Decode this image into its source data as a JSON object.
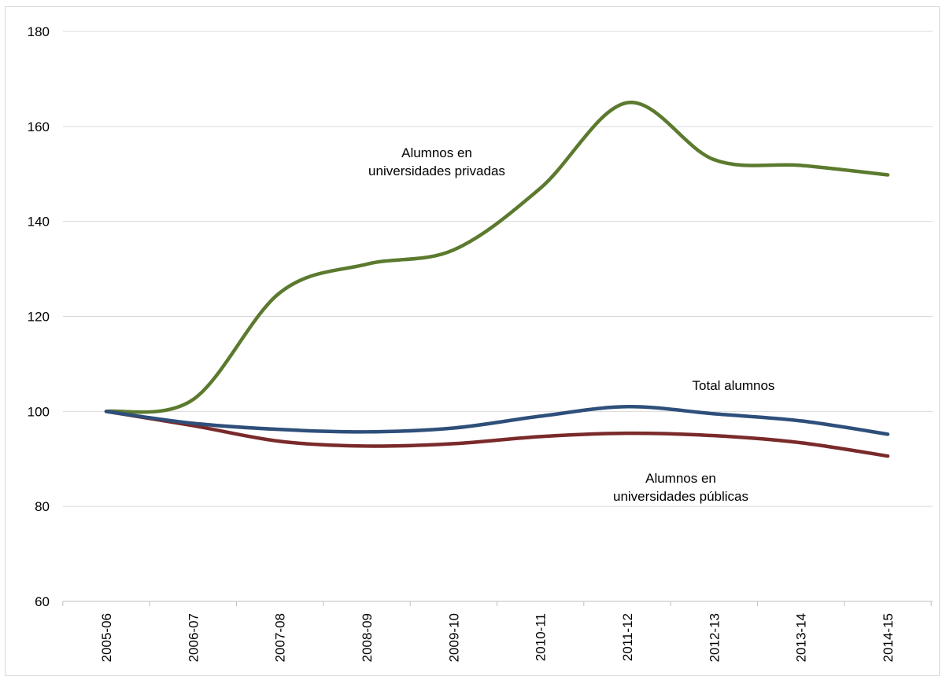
{
  "chart_data": {
    "type": "line",
    "title": "",
    "xlabel": "",
    "ylabel": "",
    "categories": [
      "2005-06",
      "2006-07",
      "2007-08",
      "2008-09",
      "2009-10",
      "2010-11",
      "2011-12",
      "2012-13",
      "2013-14",
      "2014-15"
    ],
    "ylim": [
      60,
      180
    ],
    "yticks": [
      "60",
      "80",
      "100",
      "120",
      "140",
      "160",
      "180"
    ],
    "grid": true,
    "smooth": true,
    "series": [
      {
        "name": "Alumnos en universidades privadas",
        "color": "#5b7a2e",
        "values": [
          100,
          102.5,
          125,
          131,
          134,
          147,
          165,
          153,
          151.8,
          149.8
        ]
      },
      {
        "name": "Total alumnos",
        "color": "#2e4f7a",
        "values": [
          100,
          97.5,
          96.2,
          95.7,
          96.5,
          99,
          101,
          99.5,
          98,
          95.2
        ]
      },
      {
        "name": "Alumnos en universidades públicas",
        "color": "#7a2a2a",
        "values": [
          100,
          97,
          93.7,
          92.7,
          93.2,
          94.7,
          95.4,
          94.9,
          93.4,
          90.6
        ]
      }
    ],
    "annotations": [
      {
        "lines": [
          "Alumnos en",
          "universidades privadas"
        ],
        "series": 0
      },
      {
        "lines": [
          "Total alumnos"
        ],
        "series": 1
      },
      {
        "lines": [
          "Alumnos en",
          "universidades públicas"
        ],
        "series": 2
      }
    ]
  }
}
